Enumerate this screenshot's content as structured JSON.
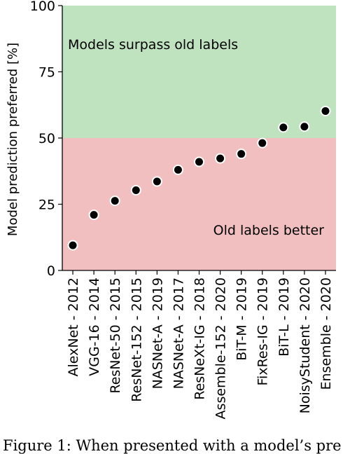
{
  "chart_data": {
    "type": "scatter",
    "categories": [
      "AlexNet - 2012",
      "VGG-16 - 2014",
      "ResNet-50 - 2015",
      "ResNet-152 - 2015",
      "NASNet-A - 2019",
      "NASNet-A - 2017",
      "ResNeXt-IG - 2018",
      "Assemble-152 - 2020",
      "BiT-M - 2019",
      "FixRes-IG - 2019",
      "BiT-L - 2019",
      "NoisyStudent - 2020",
      "Ensemble - 2020"
    ],
    "values": [
      9.5,
      21,
      26.3,
      30.3,
      33.6,
      38,
      41,
      42.3,
      44,
      48.1,
      54,
      54.3,
      60.2
    ],
    "ylabel": "Model prediction preferred [%]",
    "xlabel": "",
    "ylim": [
      0,
      100
    ],
    "yticks": [
      0,
      25,
      50,
      75,
      100
    ],
    "grid": false,
    "regions": [
      {
        "from": 50,
        "to": 100,
        "label": "Models surpass old labels",
        "color": "#bfe2bf"
      },
      {
        "from": 0,
        "to": 50,
        "label": "Old labels better",
        "color": "#f1bfbf"
      }
    ],
    "marker_color": "#000000",
    "marker_edge_color": "#ffffff"
  },
  "caption": "Figure 1: When presented with a model’s pre"
}
